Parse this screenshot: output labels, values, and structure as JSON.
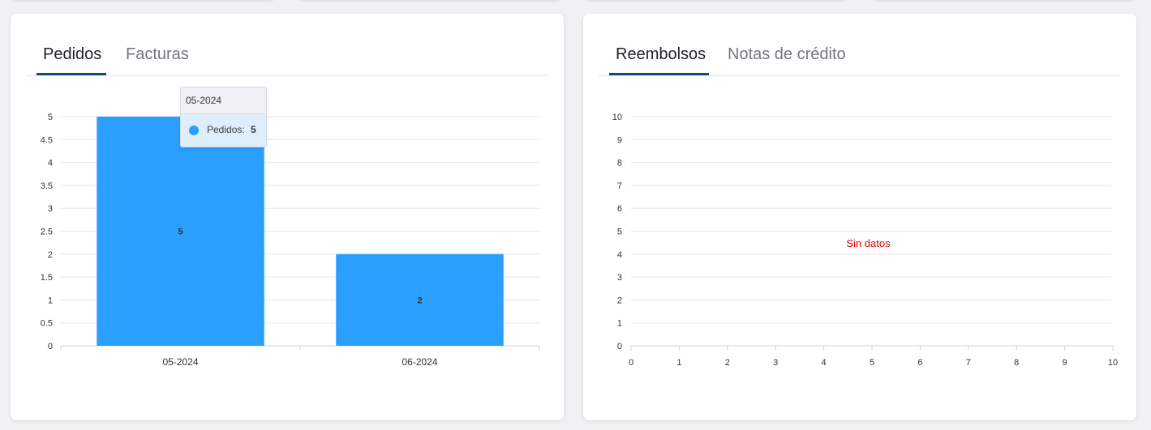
{
  "colors": {
    "bar": "#2a9ffe",
    "tab_active_underline": "#0f4c81",
    "no_data": "#e00000"
  },
  "left_panel": {
    "tabs": [
      {
        "label": "Pedidos",
        "active": true
      },
      {
        "label": "Facturas",
        "active": false
      }
    ],
    "tooltip": {
      "title": "05-2024",
      "series_label": "Pedidos:",
      "value": "5"
    }
  },
  "right_panel": {
    "tabs": [
      {
        "label": "Reembolsos",
        "active": true
      },
      {
        "label": "Notas de crédito",
        "active": false
      }
    ],
    "no_data_text": "Sin datos"
  },
  "chart_data": [
    {
      "type": "bar",
      "categories": [
        "05-2024",
        "06-2024"
      ],
      "series": [
        {
          "name": "Pedidos",
          "values": [
            5,
            2
          ]
        }
      ],
      "ylim": [
        0,
        5
      ],
      "yticks": [
        "0",
        "0.5",
        "1",
        "1.5",
        "2",
        "2.5",
        "3",
        "3.5",
        "4",
        "4.5",
        "5"
      ],
      "data_labels": [
        "5",
        "2"
      ],
      "grid": true,
      "title": "",
      "xlabel": "",
      "ylabel": ""
    },
    {
      "type": "bar",
      "categories": [],
      "series": [],
      "xlim": [
        0,
        10
      ],
      "ylim": [
        0,
        10
      ],
      "xticks": [
        "0",
        "1",
        "2",
        "3",
        "4",
        "5",
        "6",
        "7",
        "8",
        "9",
        "10"
      ],
      "yticks": [
        "0",
        "1",
        "2",
        "3",
        "4",
        "5",
        "6",
        "7",
        "8",
        "9",
        "10"
      ],
      "grid": true,
      "title": "",
      "xlabel": "",
      "ylabel": ""
    }
  ]
}
